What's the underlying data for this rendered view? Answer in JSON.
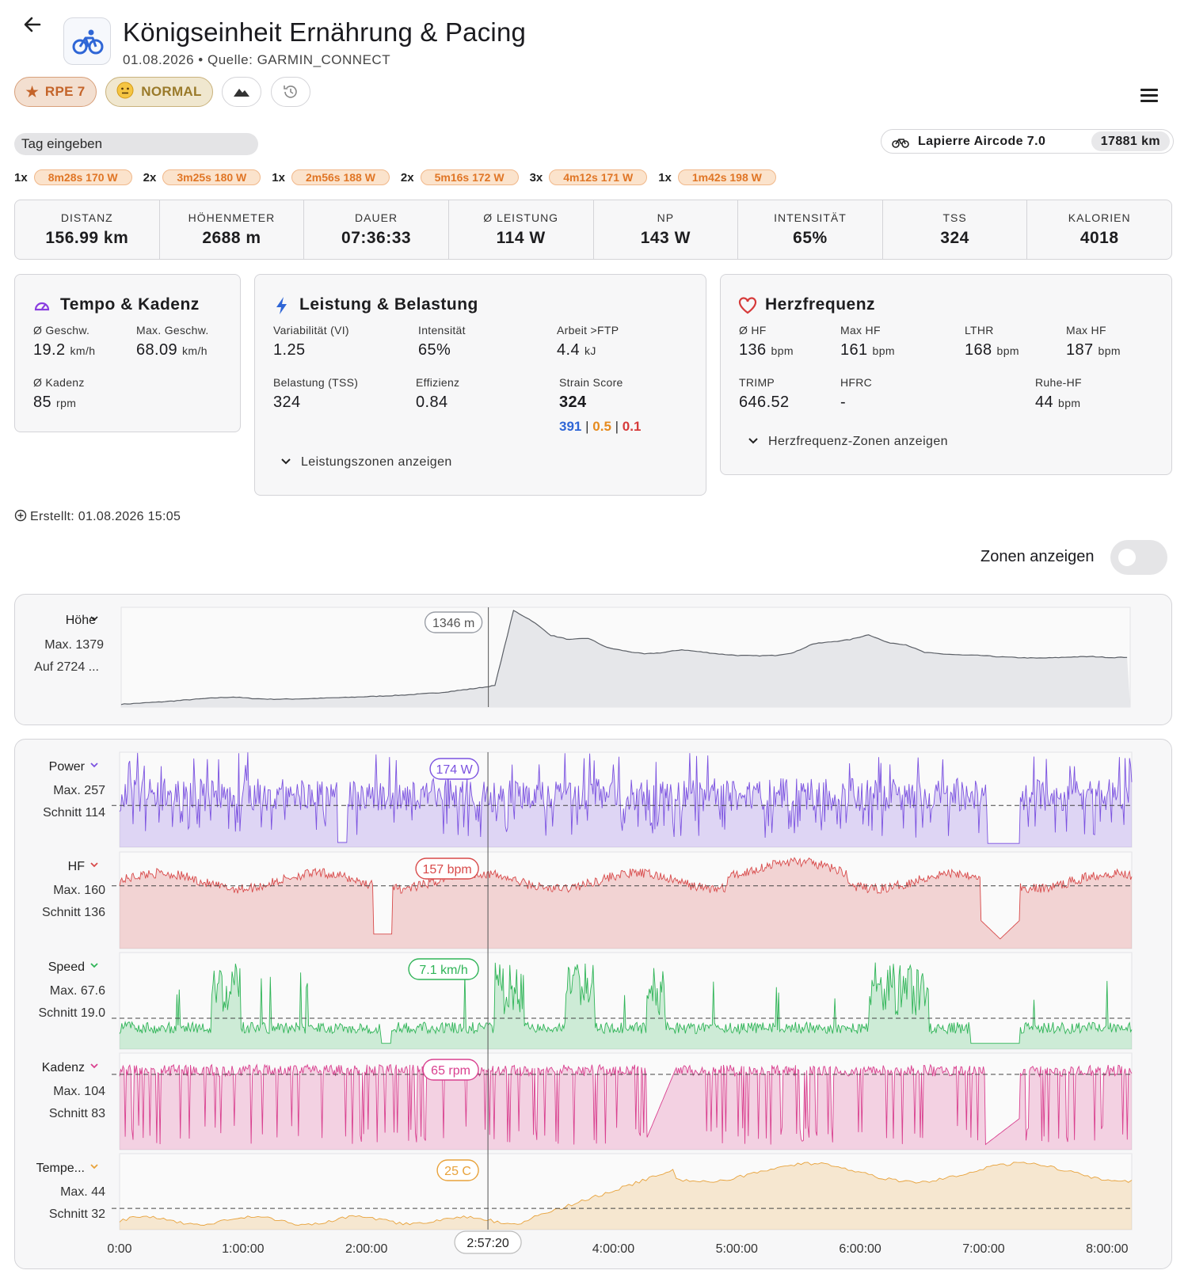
{
  "header": {
    "title": "Königseinheit Ernährung & Pacing",
    "subtitle": "01.08.2026 • Quelle: GARMIN_CONNECT",
    "rpe_label": "RPE 7",
    "mood_label": "NORMAL",
    "icons": [
      "back-arrow-icon",
      "bicycle-icon",
      "star-icon",
      "neutral-face-icon",
      "mountain-icon",
      "history-icon",
      "menu-icon"
    ]
  },
  "tag_input": {
    "placeholder": "Tag eingeben"
  },
  "bike": {
    "name": "Lapierre Aircode 7.0",
    "km": "17881 km"
  },
  "intervals": [
    {
      "count": "1x",
      "label": "8m28s 170 W"
    },
    {
      "count": "2x",
      "label": "3m25s 180 W"
    },
    {
      "count": "1x",
      "label": "2m56s 188 W"
    },
    {
      "count": "2x",
      "label": "5m16s 172 W"
    },
    {
      "count": "3x",
      "label": "4m12s 171 W"
    },
    {
      "count": "1x",
      "label": "1m42s 198 W"
    }
  ],
  "stats": [
    {
      "label": "DISTANZ",
      "value": "156.99 km"
    },
    {
      "label": "HÖHENMETER",
      "value": "2688 m"
    },
    {
      "label": "DAUER",
      "value": "07:36:33"
    },
    {
      "label": "Ø LEISTUNG",
      "value": "114 W"
    },
    {
      "label": "NP",
      "value": "143 W"
    },
    {
      "label": "INTENSITÄT",
      "value": "65%"
    },
    {
      "label": "TSS",
      "value": "324"
    },
    {
      "label": "KALORIEN",
      "value": "4018"
    }
  ],
  "tempo_card": {
    "title": "Tempo & Kadenz",
    "avg_speed_label": "Ø Geschw.",
    "avg_speed": "19.2",
    "avg_speed_unit": "km/h",
    "max_speed_label": "Max. Geschw.",
    "max_speed": "68.09",
    "max_speed_unit": "km/h",
    "avg_cad_label": "Ø Kadenz",
    "avg_cad": "85",
    "avg_cad_unit": "rpm"
  },
  "power_card": {
    "title": "Leistung & Belastung",
    "vi_label": "Variabilität (VI)",
    "vi": "1.25",
    "if_label": "Intensität",
    "if": "65%",
    "work_label": "Arbeit >FTP",
    "work": "4.4",
    "work_unit": "kJ",
    "tss_label": "Belastung (TSS)",
    "tss": "324",
    "eff_label": "Effizienz",
    "eff": "0.84",
    "strain_label": "Strain Score",
    "strain": "324",
    "strain_a": "391",
    "strain_b": "0.5",
    "strain_c": "0.1",
    "sep": "|",
    "expander": "Leistungszonen anzeigen"
  },
  "hr_card": {
    "title": "Herzfrequenz",
    "avg_label": "Ø HF",
    "avg": "136",
    "unit": "bpm",
    "max_label": "Max HF",
    "max": "161",
    "lthr_label": "LTHR",
    "lthr": "168",
    "max2_label": "Max HF",
    "max2": "187",
    "trimp_label": "TRIMP",
    "trimp": "646.52",
    "hfrc_label": "HFRC",
    "hfrc": "-",
    "rest_label": "Ruhe-HF",
    "rest": "44",
    "expander": "Herzfrequenz-Zonen anzeigen"
  },
  "created": "Erstellt: 01.08.2026 15:05",
  "zones_toggle": {
    "label": "Zonen anzeigen",
    "on": false
  },
  "colors": {
    "power": "#7b52e0",
    "hr": "#d84a4a",
    "speed": "#2fb457",
    "cadence": "#d9408f",
    "temp": "#e8a23a",
    "elevation": "#5b5f66",
    "chip_text": "#e07626"
  },
  "elevation_chart": {
    "label": "Höhe",
    "max_label": "Max. 1379",
    "gain_label": "Auf 2724 ...",
    "tooltip": "1346 m",
    "values": [
      40,
      55,
      70,
      90,
      110,
      128,
      140,
      120,
      110,
      112,
      118,
      126,
      134,
      144,
      154,
      166,
      182,
      200,
      230,
      262,
      300,
      1346,
      1200,
      1000,
      940,
      960,
      830,
      780,
      740,
      760,
      800,
      770,
      740,
      720,
      715,
      720,
      760,
      880,
      910,
      940,
      1010,
      900,
      870,
      760,
      740,
      725,
      720,
      700,
      690,
      682,
      688,
      700,
      704,
      690,
      696
    ]
  },
  "multi_chart": {
    "cursor_label": "2:57:20",
    "x_ticks": [
      "0:00",
      "1:00:00",
      "2:00:00",
      "4:00:00",
      "5:00:00",
      "6:00:00",
      "7:00:00",
      "8:00:00"
    ],
    "rows": [
      {
        "label": "Power",
        "max_label": "Max. 257",
        "avg_label": "Schnitt 114",
        "tooltip": "174 W",
        "max": 257,
        "avg": 114
      },
      {
        "label": "HF",
        "max_label": "Max. 160",
        "avg_label": "Schnitt 136",
        "tooltip": "157 bpm",
        "max": 160,
        "avg": 136
      },
      {
        "label": "Speed",
        "max_label": "Max. 67.6",
        "avg_label": "Schnitt 19.0",
        "tooltip": "7.1 km/h",
        "max": 67.6,
        "avg": 19.0
      },
      {
        "label": "Kadenz",
        "max_label": "Max. 104",
        "avg_label": "Schnitt 83",
        "tooltip": "65 rpm",
        "max": 104,
        "avg": 83
      },
      {
        "label": "Tempe...",
        "max_label": "Max. 44",
        "avg_label": "Schnitt 32",
        "tooltip": "25 C",
        "max": 44,
        "avg": 32
      }
    ]
  }
}
